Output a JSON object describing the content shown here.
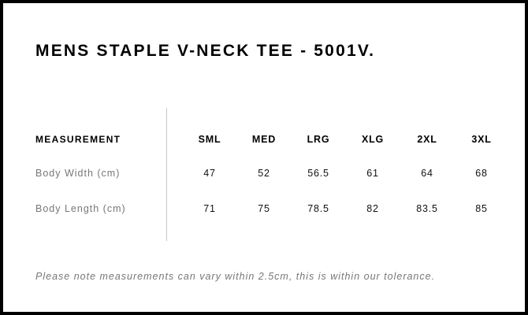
{
  "title": "MENS STAPLE V-NECK TEE - 5001V.",
  "table": {
    "header_label": "MEASUREMENT",
    "sizes": [
      "SML",
      "MED",
      "LRG",
      "XLG",
      "2XL",
      "3XL"
    ],
    "rows": [
      {
        "label": "Body Width (cm)",
        "values": [
          "47",
          "52",
          "56.5",
          "61",
          "64",
          "68"
        ]
      },
      {
        "label": "Body Length (cm)",
        "values": [
          "71",
          "75",
          "78.5",
          "82",
          "83.5",
          "85"
        ]
      }
    ]
  },
  "note": "Please note measurements can vary within 2.5cm, this is within our tolerance."
}
